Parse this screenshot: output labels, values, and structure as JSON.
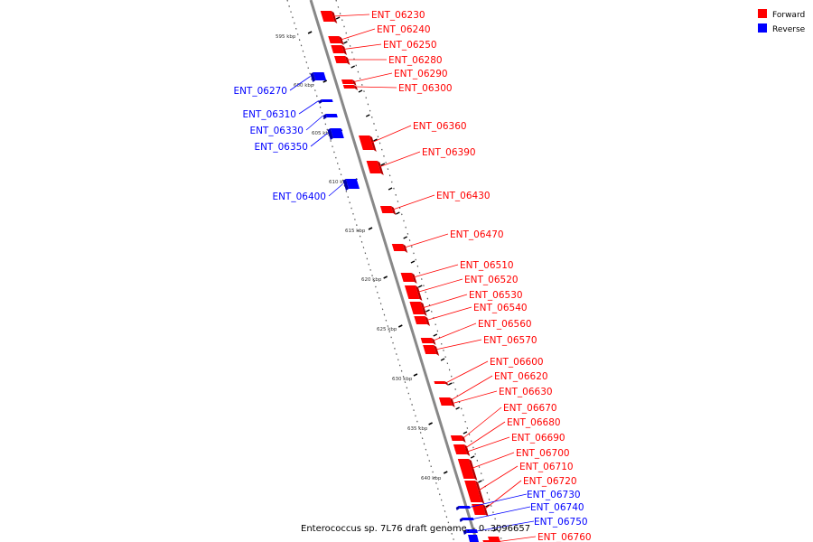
{
  "colors": {
    "forward": "#ff0000",
    "reverse": "#0000ff",
    "forward_shade": "#b30000",
    "reverse_shade": "#0000aa",
    "backbone": "#888888",
    "ticks": "#000000"
  },
  "legend": {
    "forward": "Forward",
    "reverse": "Reverse"
  },
  "caption": "Enterococcus sp. 7L76 draft genome. - 0..3096657",
  "scale_labels": [
    "595 kbp",
    "600 kbp",
    "605 kbp",
    "610 kbp",
    "615 kbp",
    "620 kbp",
    "625 kbp",
    "630 kbp",
    "635 kbp",
    "640 kbp"
  ],
  "forward_genes": [
    "ENT_06230",
    "ENT_06240",
    "ENT_06250",
    "ENT_06280",
    "ENT_06290",
    "ENT_06300",
    "ENT_06360",
    "ENT_06390",
    "ENT_06430",
    "ENT_06470",
    "ENT_06510",
    "ENT_06520",
    "ENT_06530",
    "ENT_06540",
    "ENT_06560",
    "ENT_06570",
    "ENT_06600",
    "ENT_06620",
    "ENT_06630",
    "ENT_06670",
    "ENT_06680",
    "ENT_06690",
    "ENT_06700",
    "ENT_06710",
    "ENT_06720",
    "ENT_06760"
  ],
  "reverse_genes": [
    "ENT_06270",
    "ENT_06310",
    "ENT_06330",
    "ENT_06350",
    "ENT_06400",
    "ENT_06730",
    "ENT_06740",
    "ENT_06750"
  ]
}
